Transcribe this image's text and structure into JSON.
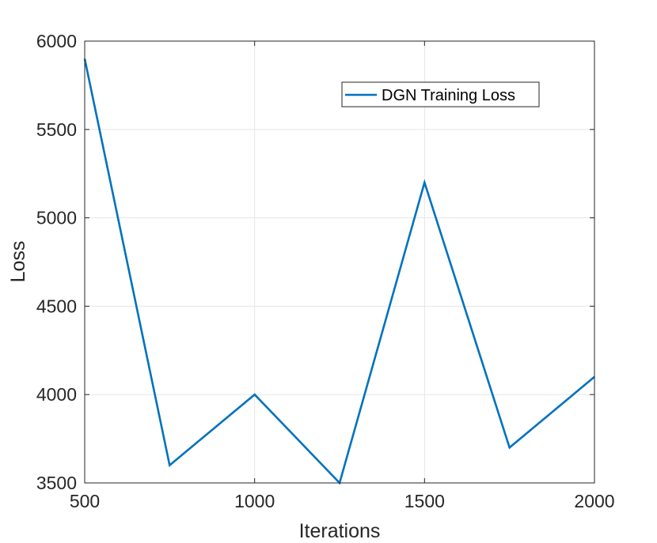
{
  "chart_data": {
    "type": "line",
    "xlabel": "Iterations",
    "ylabel": "Loss",
    "xlim": [
      500,
      2000
    ],
    "ylim": [
      3500,
      6000
    ],
    "xticks": [
      500,
      1000,
      1500,
      2000
    ],
    "yticks": [
      3500,
      4000,
      4500,
      5000,
      5500,
      6000
    ],
    "grid": true,
    "legend_position": "top-right",
    "series": [
      {
        "name": "DGN Training Loss",
        "color": "#0072BD",
        "x": [
          500,
          750,
          1000,
          1250,
          1500,
          1750,
          2000
        ],
        "y": [
          5900,
          3600,
          4000,
          3500,
          5200,
          3700,
          4100
        ]
      }
    ]
  }
}
